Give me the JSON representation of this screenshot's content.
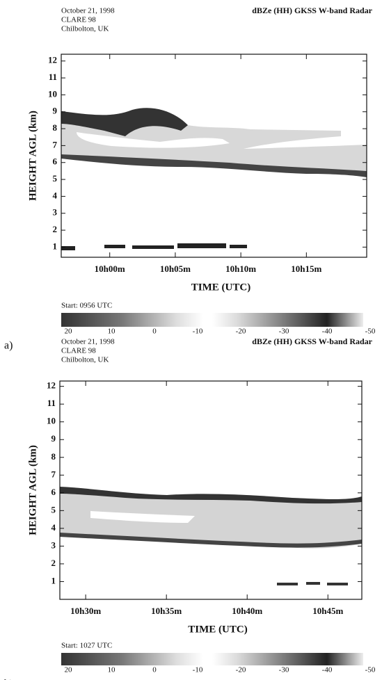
{
  "chart_data": [
    {
      "type": "radar-timeheight",
      "panel_label": "a)",
      "header": [
        "October 21, 1998",
        "CLARE 98",
        "Chilbolton, UK"
      ],
      "title": "dBZe (HH)  GKSS  W-band Radar",
      "xlabel": "TIME (UTC)",
      "ylabel": "HEIGHT AGL (km)",
      "xlim": [
        596.3,
        619.6
      ],
      "xticks": [
        {
          "value": 600,
          "label": "10h00m"
        },
        {
          "value": 605,
          "label": "10h05m"
        },
        {
          "value": 610,
          "label": "10h10m"
        },
        {
          "value": 615,
          "label": "10h15m"
        }
      ],
      "ylim": [
        0.4,
        12.4
      ],
      "yticks": [
        1,
        2,
        3,
        4,
        5,
        6,
        7,
        8,
        9,
        10,
        11,
        12
      ],
      "start_label": "Start: 0956 UTC",
      "colorbar_lim": [
        20,
        -50
      ],
      "colorbar_ticks": [
        20,
        10,
        0,
        -10,
        -20,
        -30,
        -40,
        -50
      ]
    },
    {
      "type": "radar-timeheight",
      "panel_label": "b)",
      "header": [
        "October 21, 1998",
        "CLARE 98",
        "Chilbolton, UK"
      ],
      "title": "dBZe (HH)  GKSS  W-band Radar",
      "xlabel": "TIME (UTC)",
      "ylabel": "HEIGHT AGL (km)",
      "xlim": [
        628.4,
        647.1
      ],
      "xticks": [
        {
          "value": 630,
          "label": "10h30m"
        },
        {
          "value": 635,
          "label": "10h35m"
        },
        {
          "value": 640,
          "label": "10h40m"
        },
        {
          "value": 645,
          "label": "10h45m"
        }
      ],
      "ylim": [
        0,
        12.3
      ],
      "yticks": [
        1,
        2,
        3,
        4,
        5,
        6,
        7,
        8,
        9,
        10,
        11,
        12
      ],
      "start_label": "Start: 1027 UTC",
      "colorbar_lim": [
        20,
        -50
      ],
      "colorbar_ticks": [
        20,
        10,
        0,
        -10,
        -20,
        -30,
        -40,
        -50
      ]
    }
  ]
}
